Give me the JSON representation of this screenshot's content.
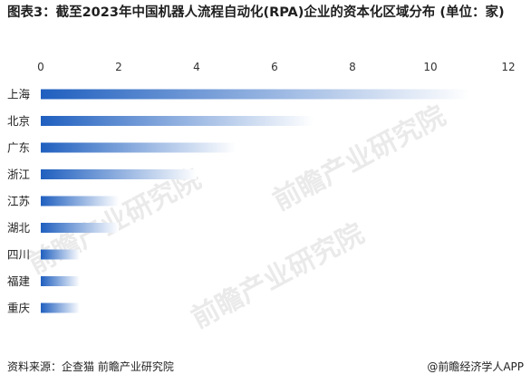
{
  "title": "图表3：截至2023年中国机器人流程自动化(RPA)企业的资本化区域分布 (单位：家)",
  "source": "资料来源：企查猫 前瞻产业研究院",
  "brand": "@前瞻经济学人APP",
  "watermark": "前瞻产业研究院",
  "colors": {
    "bar_dark": "#1f5fbf",
    "bar_light": "#ffffff"
  },
  "chart_data": {
    "type": "bar",
    "orientation": "horizontal",
    "categories": [
      "上海",
      "北京",
      "广东",
      "浙江",
      "江苏",
      "湖北",
      "四川",
      "福建",
      "重庆"
    ],
    "values": [
      11,
      7,
      5,
      4,
      2,
      2,
      1,
      1,
      1
    ],
    "xlim": [
      0,
      12
    ],
    "xticks": [
      0,
      2,
      4,
      6,
      8,
      10,
      12
    ],
    "grid": false,
    "axis_position": "top"
  }
}
